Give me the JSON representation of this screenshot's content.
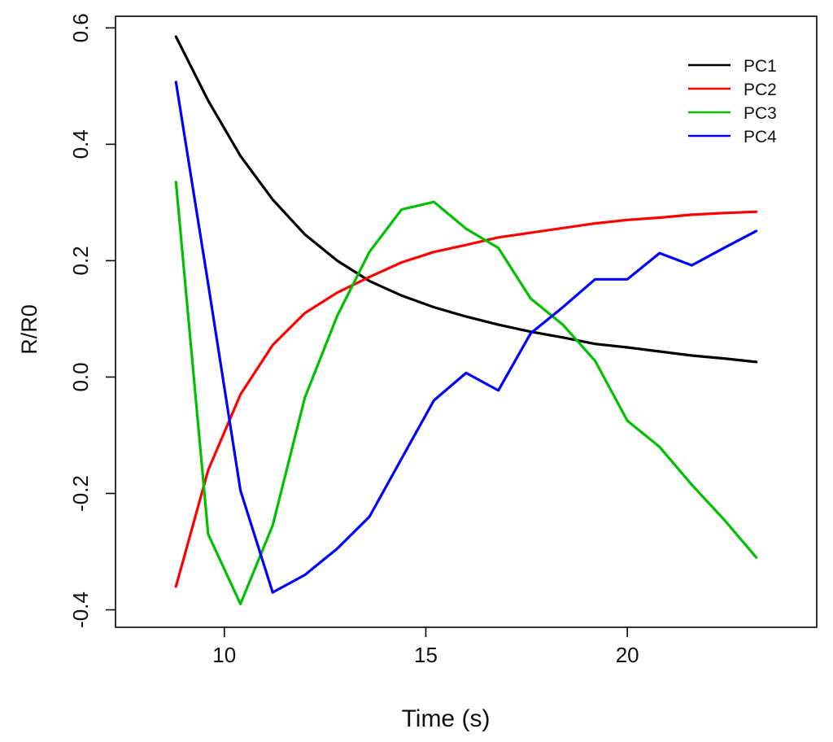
{
  "chart_data": {
    "type": "line",
    "title": "",
    "xlabel": "Time (s)",
    "ylabel": "R/R0",
    "xlim": [
      7.3,
      24.7
    ],
    "ylim": [
      -0.43,
      0.62
    ],
    "xticks": [
      10,
      15,
      20
    ],
    "xtick_labels": [
      "10",
      "15",
      "20"
    ],
    "yticks": [
      -0.4,
      -0.2,
      0.0,
      0.2,
      0.4,
      0.6
    ],
    "ytick_labels": [
      "-0.4",
      "-0.2",
      "0.0",
      "0.2",
      "0.4",
      "0.6"
    ],
    "grid": false,
    "legend_position": "top-right",
    "series": [
      {
        "name": "PC1",
        "color": "#000000",
        "x": [
          8.8,
          9.6,
          10.4,
          11.2,
          12.0,
          12.8,
          13.6,
          14.4,
          15.2,
          16.0,
          16.8,
          17.6,
          18.4,
          19.2,
          20.0,
          20.8,
          21.6,
          22.4,
          23.2
        ],
        "y": [
          0.585,
          0.475,
          0.38,
          0.305,
          0.245,
          0.2,
          0.165,
          0.14,
          0.12,
          0.104,
          0.09,
          0.078,
          0.068,
          0.057,
          0.051,
          0.044,
          0.037,
          0.032,
          0.026
        ]
      },
      {
        "name": "PC2",
        "color": "#ff0000",
        "x": [
          8.8,
          9.6,
          10.4,
          11.2,
          12.0,
          12.8,
          13.6,
          14.4,
          15.2,
          16.0,
          16.8,
          17.6,
          18.4,
          19.2,
          20.0,
          20.8,
          21.6,
          22.4,
          23.2
        ],
        "y": [
          -0.36,
          -0.16,
          -0.03,
          0.055,
          0.11,
          0.145,
          0.172,
          0.197,
          0.215,
          0.227,
          0.24,
          0.248,
          0.256,
          0.264,
          0.27,
          0.274,
          0.279,
          0.282,
          0.284
        ]
      },
      {
        "name": "PC3",
        "color": "#00c000",
        "x": [
          8.8,
          9.6,
          10.4,
          11.2,
          12.0,
          12.8,
          13.6,
          14.4,
          15.2,
          16.0,
          16.8,
          17.6,
          18.4,
          19.2,
          20.0,
          20.8,
          21.6,
          22.4,
          23.2
        ],
        "y": [
          0.335,
          -0.27,
          -0.39,
          -0.255,
          -0.035,
          0.105,
          0.215,
          0.288,
          0.301,
          0.255,
          0.222,
          0.135,
          0.09,
          0.028,
          -0.075,
          -0.12,
          -0.185,
          -0.245,
          -0.31
        ]
      },
      {
        "name": "PC4",
        "color": "#0000ff",
        "x": [
          8.8,
          9.6,
          10.4,
          11.2,
          12.0,
          12.8,
          13.6,
          14.4,
          15.2,
          16.0,
          16.8,
          17.6,
          18.4,
          19.2,
          20.0,
          20.8,
          21.6,
          22.4,
          23.2
        ],
        "y": [
          0.507,
          0.16,
          -0.195,
          -0.37,
          -0.34,
          -0.295,
          -0.24,
          -0.14,
          -0.04,
          0.007,
          -0.023,
          0.075,
          0.12,
          0.168,
          0.168,
          0.213,
          0.192,
          0.222,
          0.251
        ]
      }
    ]
  }
}
